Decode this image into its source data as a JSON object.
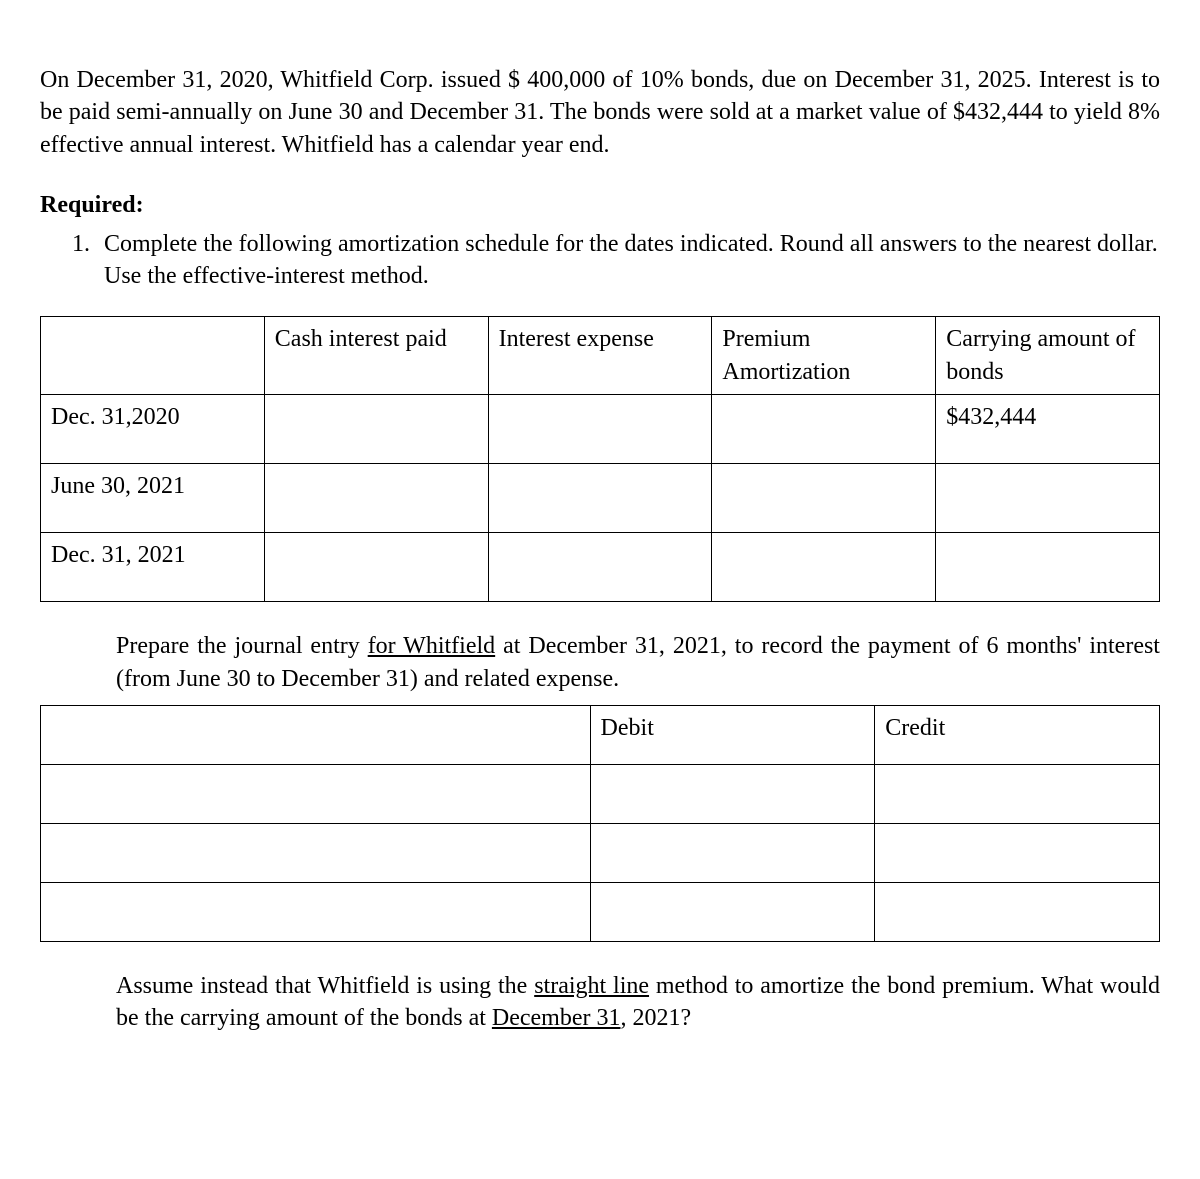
{
  "intro": "On December 31, 2020, Whitfield Corp. issued $ 400,000 of 10% bonds, due on December 31, 2025. Interest is to be paid semi-annually on June 30 and December 31. The bonds were sold at a  market  value of  $432,444 to yield 8% effective annual interest. Whitfield has a calendar year end.",
  "required_label": "Required:",
  "req_item_1": "Complete the following amortization schedule for the dates indicated. Round all answers to the nearest dollar. Use the effective-interest method.",
  "amort": {
    "headers": {
      "date": "",
      "cash": "Cash interest paid",
      "ie": "Interest expense",
      "prem": "Premium Amortization",
      "carry": "Carrying amount of bonds"
    },
    "rows": [
      {
        "date": "Dec. 31,2020",
        "cash": "",
        "ie": "",
        "prem": "",
        "carry": "$432,444"
      },
      {
        "date": "June 30, 2021",
        "cash": "",
        "ie": "",
        "prem": "",
        "carry": ""
      },
      {
        "date": "Dec. 31, 2021",
        "cash": "",
        "ie": "",
        "prem": "",
        "carry": ""
      }
    ]
  },
  "journal_instruction_pre": "Prepare the journal entry ",
  "journal_instruction_ul": "for  Whitfield",
  "journal_instruction_post": "  at  December  31, 2021, to record the payment of 6 months'  interest (from  June  30 to December  31) and  related  expense.",
  "journal": {
    "headers": {
      "acct": "",
      "debit": "Debit",
      "credit": "Credit"
    }
  },
  "sl_pre": "Assume instead that Whitfield is using the ",
  "sl_ul1": "straight line",
  "sl_mid": " method to amortize the bond premium. What would be the carrying amount of the bonds at ",
  "sl_ul2": "December  31",
  "sl_post": ", 2021? "
}
